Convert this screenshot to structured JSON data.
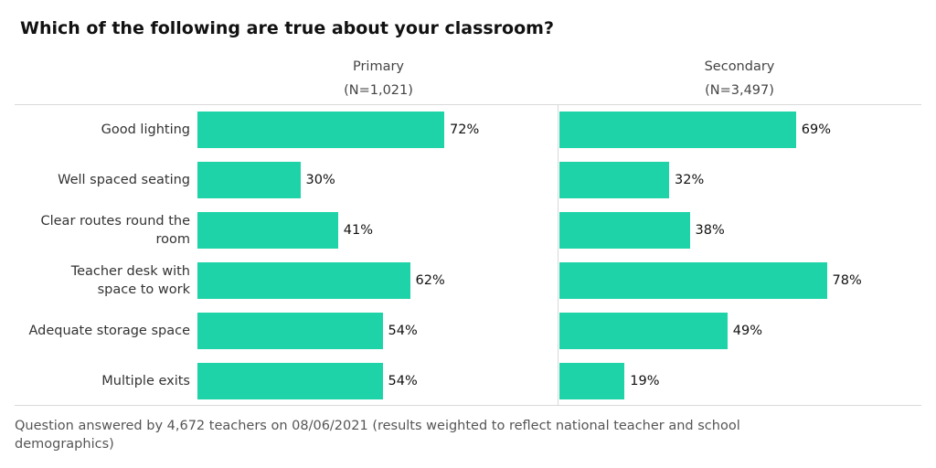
{
  "chart_data": {
    "type": "bar",
    "orientation": "horizontal",
    "title": "Which of the following are true about your classroom?",
    "categories": [
      "Good lighting",
      "Well spaced seating",
      "Clear routes round the room",
      "Teacher desk with space to work",
      "Adequate storage space",
      "Multiple exits"
    ],
    "category_lines": [
      [
        "Good lighting"
      ],
      [
        "Well spaced seating"
      ],
      [
        "Clear routes round the",
        "room"
      ],
      [
        "Teacher desk with",
        "space to work"
      ],
      [
        "Adequate storage space"
      ],
      [
        "Multiple exits"
      ]
    ],
    "panels": [
      {
        "name": "Primary",
        "n_label": "(N=1,021)",
        "values": [
          72,
          30,
          41,
          62,
          54,
          54
        ],
        "value_labels": [
          "72%",
          "30%",
          "41%",
          "62%",
          "54%",
          "54%"
        ]
      },
      {
        "name": "Secondary",
        "n_label": "(N=3,497)",
        "values": [
          69,
          32,
          38,
          78,
          49,
          19
        ],
        "value_labels": [
          "69%",
          "32%",
          "38%",
          "78%",
          "49%",
          "19%"
        ]
      }
    ],
    "xlim": [
      0,
      100
    ],
    "unit": "%",
    "bar_color": "#1fd3a8",
    "footnote": "Question answered by 4,672 teachers on 08/06/2021 (results weighted to reflect national teacher and school demographics)"
  }
}
